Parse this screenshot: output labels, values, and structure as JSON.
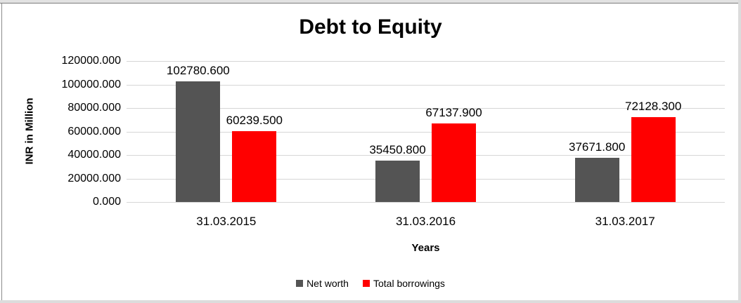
{
  "chart_data": {
    "type": "bar",
    "title": "Debt to Equity",
    "xlabel": "Years",
    "ylabel": "INR in Million",
    "categories": [
      "31.03.2015",
      "31.03.2016",
      "31.03.2017"
    ],
    "series": [
      {
        "name": "Net worth",
        "color": "#545454",
        "values": [
          102780.6,
          35450.8,
          37671.8
        ],
        "labels": [
          "102780.600",
          "35450.800",
          "37671.800"
        ]
      },
      {
        "name": "Total borrowings",
        "color": "#ff0000",
        "values": [
          60239.5,
          67137.9,
          72128.3
        ],
        "labels": [
          "60239.500",
          "67137.900",
          "72128.300"
        ]
      }
    ],
    "ylim": [
      0,
      120000
    ],
    "y_ticks": [
      {
        "value": 0,
        "label": "0.000"
      },
      {
        "value": 20000,
        "label": "20000.000"
      },
      {
        "value": 40000,
        "label": "40000.000"
      },
      {
        "value": 60000,
        "label": "60000.000"
      },
      {
        "value": 80000,
        "label": "80000.000"
      },
      {
        "value": 100000,
        "label": "100000.000"
      },
      {
        "value": 120000,
        "label": "120000.000"
      }
    ],
    "grid": true,
    "gridline_color": "#d6d6d6",
    "legend_position": "bottom",
    "text_color": "#000000"
  }
}
